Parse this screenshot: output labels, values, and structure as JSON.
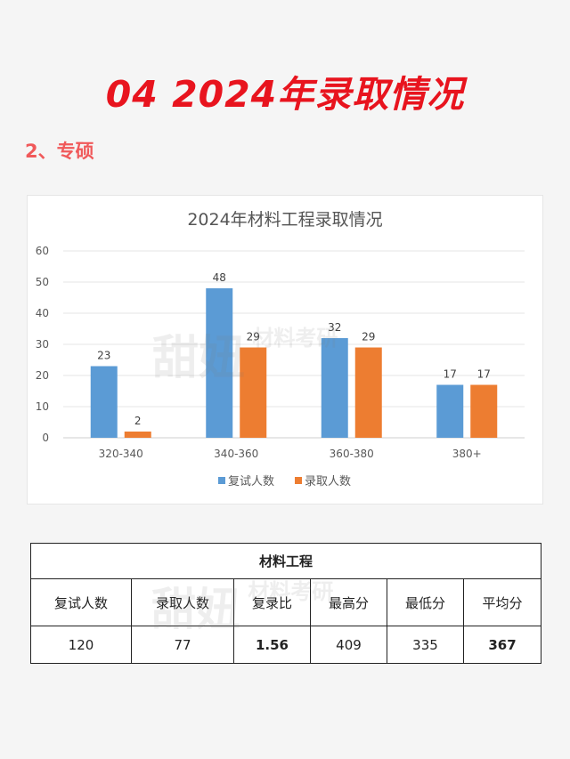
{
  "headline": "04 2024年录取情况",
  "subheading": "2、专硕",
  "chart_data": {
    "type": "bar",
    "title": "2024年材料工程录取情况",
    "categories": [
      "320-340",
      "340-360",
      "360-380",
      "380+"
    ],
    "series": [
      {
        "name": "复试人数",
        "values": [
          23,
          48,
          32,
          17
        ],
        "color": "#5b9bd5"
      },
      {
        "name": "录取人数",
        "values": [
          2,
          29,
          29,
          17
        ],
        "color": "#ed7d31"
      }
    ],
    "ylim": [
      0,
      60
    ],
    "yticks": [
      "0",
      "10",
      "20",
      "30",
      "40",
      "50",
      "60"
    ],
    "grid": true,
    "legend": "bottom"
  },
  "table": {
    "caption": "材料工程",
    "headers": [
      "复试人数",
      "录取人数",
      "复录比",
      "最高分",
      "最低分",
      "平均分"
    ],
    "values": [
      "120",
      "77",
      "1.56",
      "409",
      "335",
      "367"
    ],
    "highlight_color": "#d62a2a"
  }
}
